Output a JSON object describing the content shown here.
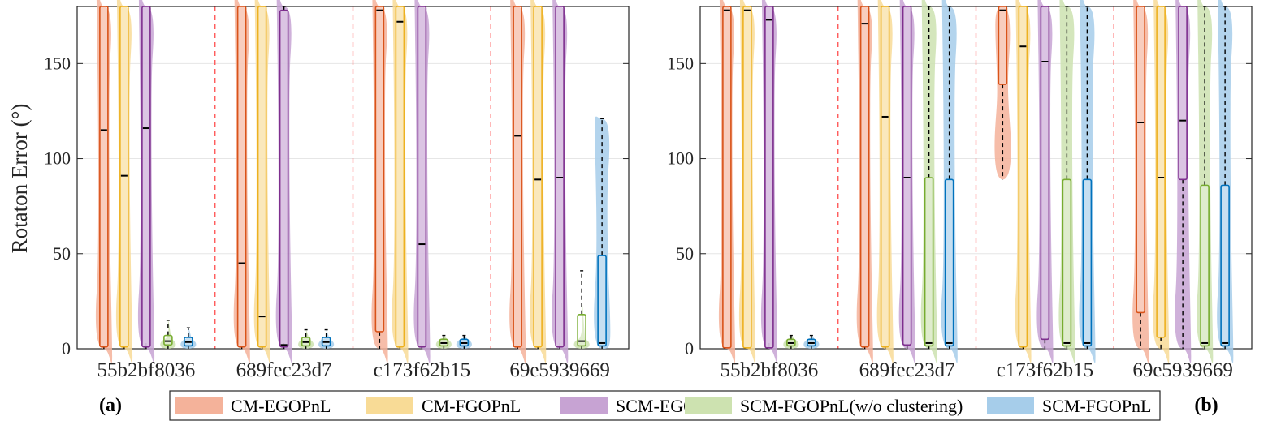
{
  "chart_data": {
    "type": "violin-box",
    "ylabel": "Rotaton Error (°)",
    "ylim": [
      0,
      180
    ],
    "yticks": [
      0,
      50,
      100,
      150
    ],
    "categories": [
      "55b2bf8036",
      "689fec23d7",
      "c173f62b15",
      "69e5939669"
    ],
    "legend": [
      {
        "name": "CM-EGOPnL",
        "color": "#D95319",
        "fill": "#F4B29A"
      },
      {
        "name": "CM-FGOPnL",
        "color": "#EDB120",
        "fill": "#F8DB96"
      },
      {
        "name": "SCM-EGOPnL",
        "color": "#7E2F8E",
        "fill": "#C7A3D3"
      },
      {
        "name": "SCM-FGOPnL(w/o clustering)",
        "color": "#77AC30",
        "fill": "#CDE2B0"
      },
      {
        "name": "SCM-FGOPnL",
        "color": "#0072BD",
        "fill": "#A6CDEA"
      }
    ],
    "panels": [
      {
        "label": "(a)",
        "groups": [
          {
            "boxes": [
              {
                "q1": 1,
                "median": 115,
                "q3": 180,
                "wlow": 0,
                "whigh": 180
              },
              {
                "q1": 1,
                "median": 91,
                "q3": 180,
                "wlow": 0,
                "whigh": 180
              },
              {
                "q1": 1,
                "median": 116,
                "q3": 180,
                "wlow": 0,
                "whigh": 180
              },
              {
                "q1": 2,
                "median": 4,
                "q3": 7,
                "wlow": 0,
                "whigh": 15
              },
              {
                "q1": 1.5,
                "median": 3.5,
                "q3": 6,
                "wlow": 0,
                "whigh": 11
              }
            ]
          },
          {
            "boxes": [
              {
                "q1": 1,
                "median": 45,
                "q3": 180,
                "wlow": 0,
                "whigh": 180
              },
              {
                "q1": 1,
                "median": 17,
                "q3": 180,
                "wlow": 0,
                "whigh": 180
              },
              {
                "q1": 1,
                "median": 2,
                "q3": 178,
                "wlow": 0,
                "whigh": 180
              },
              {
                "q1": 1.5,
                "median": 3.5,
                "q3": 6,
                "wlow": 0,
                "whigh": 10
              },
              {
                "q1": 1.5,
                "median": 3.5,
                "q3": 6,
                "wlow": 0,
                "whigh": 10
              }
            ]
          },
          {
            "boxes": [
              {
                "q1": 9,
                "median": 178,
                "q3": 180,
                "wlow": 0,
                "whigh": 180
              },
              {
                "q1": 1,
                "median": 172,
                "q3": 180,
                "wlow": 0,
                "whigh": 180
              },
              {
                "q1": 1,
                "median": 55,
                "q3": 180,
                "wlow": 0,
                "whigh": 180
              },
              {
                "q1": 1.5,
                "median": 3,
                "q3": 5,
                "wlow": 0,
                "whigh": 7
              },
              {
                "q1": 1.5,
                "median": 3,
                "q3": 5,
                "wlow": 0,
                "whigh": 7
              }
            ]
          },
          {
            "boxes": [
              {
                "q1": 1,
                "median": 112,
                "q3": 180,
                "wlow": 0,
                "whigh": 180
              },
              {
                "q1": 1,
                "median": 89,
                "q3": 180,
                "wlow": 0,
                "whigh": 180
              },
              {
                "q1": 1,
                "median": 90,
                "q3": 180,
                "wlow": 0,
                "whigh": 180
              },
              {
                "q1": 1.5,
                "median": 4,
                "q3": 18,
                "wlow": 0,
                "whigh": 41
              },
              {
                "q1": 1.5,
                "median": 3,
                "q3": 49,
                "wlow": 0,
                "whigh": 121
              }
            ]
          }
        ]
      },
      {
        "label": "(b)",
        "groups": [
          {
            "boxes": [
              {
                "q1": 0.5,
                "median": 178,
                "q3": 180,
                "wlow": 0,
                "whigh": 180
              },
              {
                "q1": 0.5,
                "median": 178,
                "q3": 180,
                "wlow": 0,
                "whigh": 180
              },
              {
                "q1": 0.5,
                "median": 173,
                "q3": 180,
                "wlow": 0,
                "whigh": 180
              },
              {
                "q1": 1.5,
                "median": 3,
                "q3": 5,
                "wlow": 0,
                "whigh": 7
              },
              {
                "q1": 1.5,
                "median": 3,
                "q3": 5,
                "wlow": 0,
                "whigh": 7
              }
            ]
          },
          {
            "boxes": [
              {
                "q1": 1,
                "median": 171,
                "q3": 180,
                "wlow": 0,
                "whigh": 180
              },
              {
                "q1": 1,
                "median": 122,
                "q3": 180,
                "wlow": 0,
                "whigh": 180
              },
              {
                "q1": 2,
                "median": 90,
                "q3": 180,
                "wlow": 0,
                "whigh": 180
              },
              {
                "q1": 1.5,
                "median": 3,
                "q3": 90,
                "wlow": 0,
                "whigh": 180
              },
              {
                "q1": 1.5,
                "median": 3,
                "q3": 89,
                "wlow": 0,
                "whigh": 180
              }
            ]
          },
          {
            "boxes": [
              {
                "q1": 139,
                "median": 178,
                "q3": 180,
                "wlow": 89,
                "whigh": 180
              },
              {
                "q1": 1,
                "median": 159,
                "q3": 180,
                "wlow": 0,
                "whigh": 180
              },
              {
                "q1": 5,
                "median": 151,
                "q3": 180,
                "wlow": 0,
                "whigh": 180
              },
              {
                "q1": 1.5,
                "median": 3,
                "q3": 89,
                "wlow": 0,
                "whigh": 180
              },
              {
                "q1": 1.5,
                "median": 3,
                "q3": 89,
                "wlow": 0,
                "whigh": 180
              }
            ]
          },
          {
            "boxes": [
              {
                "q1": 19,
                "median": 119,
                "q3": 180,
                "wlow": 0,
                "whigh": 180
              },
              {
                "q1": 6,
                "median": 90,
                "q3": 180,
                "wlow": 0,
                "whigh": 180
              },
              {
                "q1": 89,
                "median": 120,
                "q3": 180,
                "wlow": 0,
                "whigh": 180
              },
              {
                "q1": 1.5,
                "median": 3,
                "q3": 86,
                "wlow": 0,
                "whigh": 180
              },
              {
                "q1": 1.5,
                "median": 3,
                "q3": 86,
                "wlow": 0,
                "whigh": 180
              }
            ]
          }
        ]
      }
    ]
  }
}
